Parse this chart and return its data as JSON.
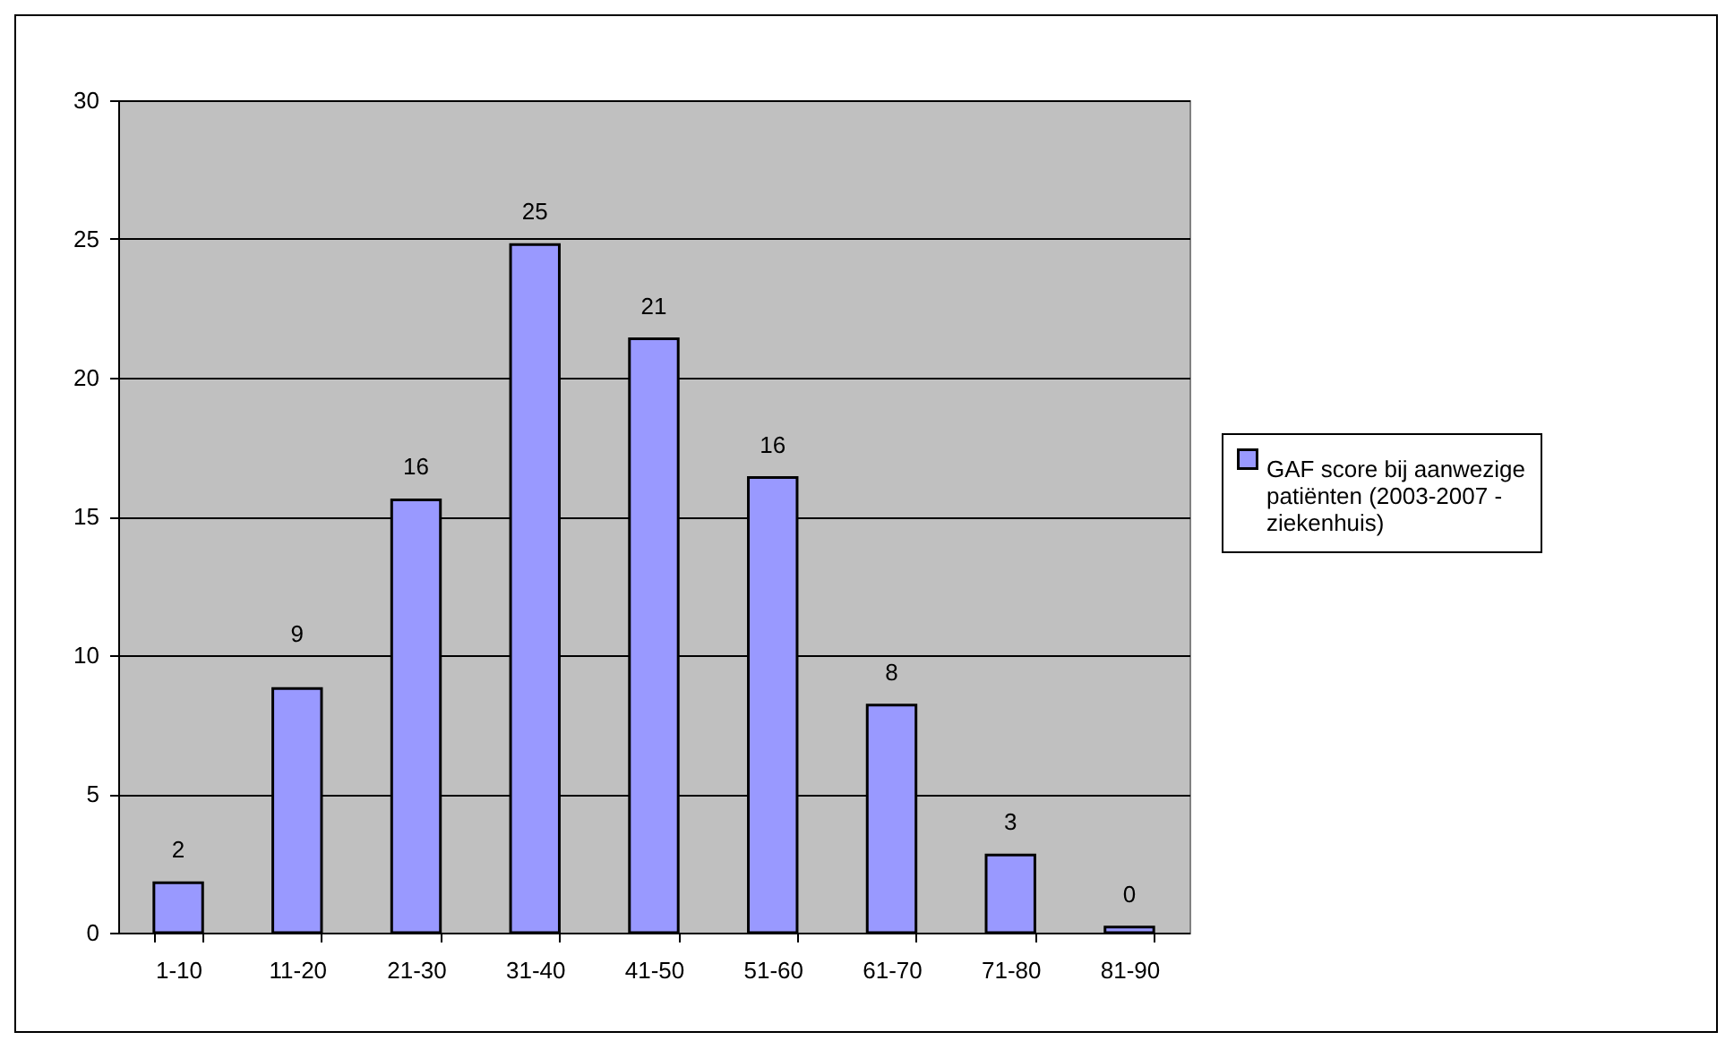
{
  "chart_data": {
    "type": "bar",
    "categories": [
      "1-10",
      "11-20",
      "21-30",
      "31-40",
      "41-50",
      "51-60",
      "61-70",
      "71-80",
      "81-90"
    ],
    "series": [
      {
        "name": "GAF score bij aanwezige patiënten (2003-2007 - ziekenhuis)",
        "color": "#9999ff",
        "values": [
          1.8,
          8.8,
          15.6,
          24.8,
          21.4,
          16.4,
          8.2,
          2.8,
          0.2
        ],
        "value_labels": [
          "2",
          "9",
          "16",
          "25",
          "21",
          "16",
          "8",
          "3",
          "0"
        ]
      }
    ],
    "ylim": [
      0,
      30
    ],
    "yticks": [
      0,
      5,
      10,
      15,
      20,
      25,
      30
    ],
    "grid": "y",
    "legend": "right"
  }
}
